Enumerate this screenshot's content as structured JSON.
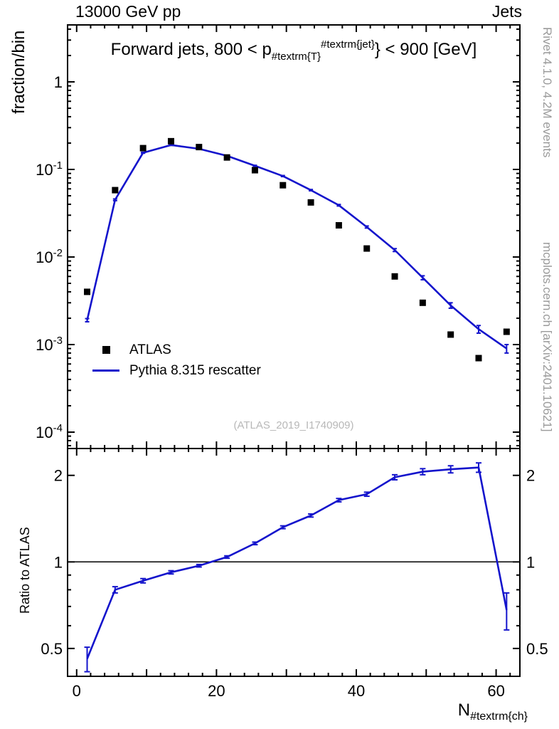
{
  "header": {
    "left_label": "13000 GeV pp",
    "right_label": "Jets"
  },
  "panel_title": {
    "prefix": "Forward jets, 800 < p",
    "sub": "#textrm{T}",
    "sup": "#textrm{jet}",
    "suffix": "} < 900 [GeV]"
  },
  "side_notes": {
    "top_right": "Rivet 4.1.0,  4.2M events",
    "bottom_right": "mcplots.cern.ch [arXiv:2401.10621]"
  },
  "watermark": "(ATLAS_2019_I1740909)",
  "legend": {
    "items": [
      {
        "label": "ATLAS",
        "marker": "square",
        "color": "#000000"
      },
      {
        "label": "Pythia 8.315 rescatter",
        "marker": "line",
        "color": "#1414cc"
      }
    ]
  },
  "axes": {
    "x_label_base": "N",
    "x_label_sub": "#textrm{ch}",
    "y_label_main": "fraction/bin",
    "y_label_ratio": "Ratio to ATLAS"
  },
  "colors": {
    "pythia_blue": "#1414cc",
    "marker_black": "#000000",
    "gray_text": "#9a9a9a",
    "watermark_gray": "#b8b8b8"
  },
  "chart_data": [
    {
      "type": "line",
      "panel": "main",
      "title": "Forward jets, 800 < p_{#textrm{T}}^{#textrm{jet}}} < 900 [GeV]",
      "xlabel": "N_{#textrm{ch}}",
      "ylabel": "fraction/bin",
      "yscale": "log",
      "xlim": [
        -1.3,
        63.4
      ],
      "ylim": [
        6.5e-05,
        4.47
      ],
      "x_major_labels": [
        0,
        20,
        40,
        60
      ],
      "x": [
        1.5,
        5.5,
        9.5,
        13.5,
        17.5,
        21.5,
        25.5,
        29.5,
        33.5,
        37.5,
        41.5,
        45.5,
        49.5,
        53.5,
        57.5,
        61.5
      ],
      "series": [
        {
          "name": "ATLAS",
          "style": "scatter-square",
          "color": "#000000",
          "values": [
            0.004,
            0.058,
            0.175,
            0.21,
            0.18,
            0.137,
            0.098,
            0.066,
            0.042,
            0.023,
            0.0125,
            0.006,
            0.003,
            0.0013,
            0.0007,
            0.0014
          ]
        },
        {
          "name": "Pythia 8.315 rescatter",
          "style": "line",
          "color": "#1414cc",
          "values": [
            0.0019,
            0.045,
            0.155,
            0.19,
            0.172,
            0.143,
            0.11,
            0.084,
            0.058,
            0.039,
            0.022,
            0.012,
            0.0058,
            0.0028,
            0.0015,
            0.0009
          ],
          "errors": [
            8e-05,
            0.001,
            0.002,
            0.002,
            0.002,
            0.0018,
            0.0015,
            0.0012,
            0.001,
            0.0008,
            0.0006,
            0.00045,
            0.0003,
            0.0002,
            0.00015,
            0.0001
          ]
        }
      ]
    },
    {
      "type": "line",
      "panel": "ratio",
      "ylabel": "Ratio to ATLAS",
      "yscale": "log",
      "ylim": [
        0.4,
        2.48
      ],
      "ref_line": 1,
      "y_labeled_ticks": [
        0.5,
        1,
        2
      ],
      "x": [
        1.5,
        5.5,
        9.5,
        13.5,
        17.5,
        21.5,
        25.5,
        29.5,
        33.5,
        37.5,
        41.5,
        45.5,
        49.5,
        53.5,
        57.5,
        61.5
      ],
      "series": [
        {
          "name": "Pythia 8.315 rescatter / ATLAS",
          "style": "line",
          "color": "#1414cc",
          "values": [
            0.46,
            0.8,
            0.86,
            0.92,
            0.97,
            1.04,
            1.16,
            1.32,
            1.45,
            1.64,
            1.72,
            1.97,
            2.06,
            2.1,
            2.13,
            0.68
          ],
          "errors": [
            0.045,
            0.02,
            0.015,
            0.012,
            0.01,
            0.01,
            0.012,
            0.015,
            0.018,
            0.022,
            0.028,
            0.04,
            0.05,
            0.06,
            0.08,
            0.1
          ]
        }
      ]
    }
  ]
}
